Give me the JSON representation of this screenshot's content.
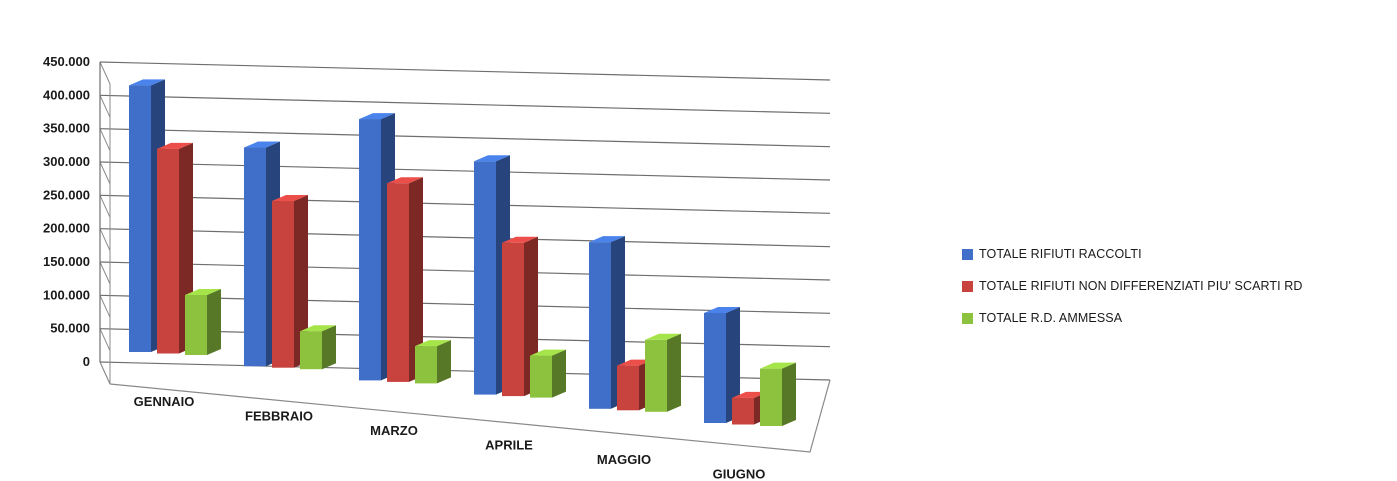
{
  "chart_data": {
    "type": "bar",
    "title": "",
    "xlabel": "",
    "ylabel": "",
    "ylim": [
      0,
      450000
    ],
    "y_ticks": [
      {
        "value": 0,
        "label": "0"
      },
      {
        "value": 50000,
        "label": "50.000"
      },
      {
        "value": 100000,
        "label": "100.000"
      },
      {
        "value": 150000,
        "label": "150.000"
      },
      {
        "value": 200000,
        "label": "200.000"
      },
      {
        "value": 250000,
        "label": "250.000"
      },
      {
        "value": 300000,
        "label": "300.000"
      },
      {
        "value": 350000,
        "label": "350.000"
      },
      {
        "value": 400000,
        "label": "400.000"
      },
      {
        "value": 450000,
        "label": "450.000"
      }
    ],
    "categories": [
      "GENNAIO",
      "FEBBRAIO",
      "MARZO",
      "APRILE",
      "MAGGIO",
      "GIUGNO"
    ],
    "series": [
      {
        "name": "TOTALE RIFIUTI RACCOLTI",
        "color": "#3F6FC8",
        "values": [
          400000,
          328000,
          392000,
          350000,
          250000,
          165000
        ]
      },
      {
        "name": "TOTALE RIFIUTI NON DIFFERENZIATI PIU' SCARTI RD",
        "color": "#C8423E",
        "values": [
          307000,
          250000,
          298000,
          230000,
          67000,
          40000
        ]
      },
      {
        "name": "TOTALE R.D. AMMESSA",
        "color": "#8DC23E",
        "values": [
          90000,
          57000,
          56000,
          63000,
          108000,
          86000
        ]
      }
    ],
    "grid": true,
    "legend_position": "right",
    "style": "3d-clustered-column"
  }
}
